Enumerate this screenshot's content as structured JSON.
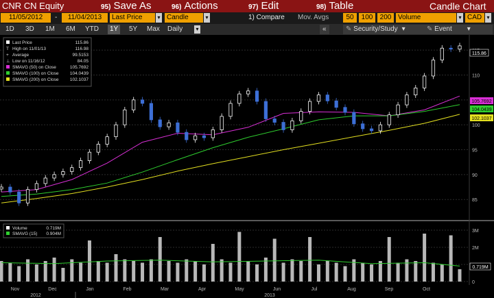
{
  "toolbar": {
    "ticker": "CNR CN Equity",
    "save_as": {
      "num": "95)",
      "label": "Save As"
    },
    "actions": {
      "num": "96)",
      "label": "Actions"
    },
    "edit": {
      "num": "97)",
      "label": "Edit"
    },
    "table": {
      "num": "98)",
      "label": "Table"
    },
    "title": "Candle Chart",
    "arrow": "▾"
  },
  "params": {
    "start_date": "11/05/2012",
    "dash": "-",
    "end_date": "11/04/2013",
    "field": "Last Price",
    "chart_type": "Candle",
    "compare": "1) Compare",
    "mov_avgs": "Mov. Avgs",
    "ma1": "50",
    "ma2": "100",
    "ma3": "200",
    "lower": "Volume",
    "currency": "CAD"
  },
  "periods": {
    "tabs": [
      "1D",
      "3D",
      "1M",
      "6M",
      "YTD",
      "1Y",
      "5Y",
      "Max"
    ],
    "active": "1Y",
    "frequency": "Daily",
    "collapse": "«",
    "security_study": "Security/Study",
    "event": "Event"
  },
  "colors": {
    "price": "#ffffff",
    "down": "#3d6fd6",
    "sma50": "#d92fd6",
    "sma100": "#2fcf2f",
    "sma200": "#e4e020",
    "volume": "#b8b8b8",
    "vol_sma": "#2fcf2f"
  },
  "legend": {
    "last_price": {
      "label": "Last Price",
      "value": "115.86"
    },
    "high": {
      "label": "High on 11/01/13",
      "value": "116.98"
    },
    "average": {
      "label": "Average",
      "value": "99.5153"
    },
    "low": {
      "label": "Low on 11/16/12",
      "value": "84.05"
    },
    "sma50": {
      "label": "SMAVG (50)  on Close",
      "value": "105.7692"
    },
    "sma100": {
      "label": "SMAVG (100)  on Close",
      "value": "104.0439"
    },
    "sma200": {
      "label": "SMAVG (200)  on Close",
      "value": "102.1037"
    }
  },
  "vol_legend": {
    "volume": {
      "label": "Volume",
      "value": "0.719M"
    },
    "sma15": {
      "label": "SMAVG (15)",
      "value": "0.904M"
    }
  },
  "tags": {
    "last": "115.86",
    "sma50": "105.7692",
    "sma100": "104.0439",
    "sma200": "102.1037",
    "volume": "0.719M"
  },
  "x_axis": {
    "months": [
      "Nov",
      "Dec",
      "Jan",
      "Feb",
      "Mar",
      "Apr",
      "May",
      "Jun",
      "Jul",
      "Aug",
      "Sep",
      "Oct"
    ],
    "years": [
      "2012",
      "2013"
    ]
  },
  "chart_data": [
    {
      "type": "candlestick",
      "title": "",
      "y_ticks": [
        85,
        90,
        95,
        100,
        105,
        110,
        115
      ],
      "ylim": [
        82,
        117.5
      ],
      "x": [
        "2012-11-05",
        "2012-11-12",
        "2012-11-16",
        "2012-11-26",
        "2012-12-03",
        "2012-12-10",
        "2012-12-17",
        "2012-12-24",
        "2012-12-31",
        "2013-01-07",
        "2013-01-14",
        "2013-01-21",
        "2013-01-28",
        "2013-02-04",
        "2013-02-11",
        "2013-02-18",
        "2013-02-25",
        "2013-03-04",
        "2013-03-11",
        "2013-03-18",
        "2013-03-25",
        "2013-04-01",
        "2013-04-08",
        "2013-04-15",
        "2013-04-22",
        "2013-04-29",
        "2013-05-06",
        "2013-05-13",
        "2013-05-20",
        "2013-05-27",
        "2013-06-03",
        "2013-06-10",
        "2013-06-17",
        "2013-06-24",
        "2013-07-01",
        "2013-07-08",
        "2013-07-15",
        "2013-07-22",
        "2013-07-29",
        "2013-08-05",
        "2013-08-12",
        "2013-08-19",
        "2013-08-26",
        "2013-09-02",
        "2013-09-09",
        "2013-09-16",
        "2013-09-23",
        "2013-09-30",
        "2013-10-07",
        "2013-10-14",
        "2013-10-21",
        "2013-10-28",
        "2013-11-04"
      ],
      "close": [
        87.5,
        86.5,
        84.3,
        87.0,
        88.2,
        89.3,
        90.0,
        90.6,
        91.4,
        92.8,
        94.5,
        96.1,
        97.6,
        100.0,
        103.0,
        105.0,
        104.3,
        101.0,
        99.6,
        100.4,
        98.5,
        97.0,
        97.8,
        97.4,
        99.0,
        101.7,
        104.3,
        106.2,
        106.8,
        104.7,
        101.2,
        100.5,
        99.0,
        100.8,
        102.7,
        104.7,
        106.0,
        104.8,
        103.5,
        102.5,
        100.2,
        99.2,
        98.8,
        100.0,
        102.0,
        104.0,
        106.0,
        107.4,
        109.8,
        113.0,
        115.4,
        115.2,
        115.86
      ],
      "series": [
        {
          "name": "SMAVG (50) on Close",
          "x": [
            0,
            4,
            8,
            12,
            16,
            20,
            24,
            28,
            32,
            36,
            40,
            44,
            48,
            52
          ],
          "values": [
            86.5,
            87.0,
            89.0,
            92.3,
            96.5,
            98.3,
            98.0,
            99.5,
            102.3,
            102.6,
            102.5,
            101.8,
            103.0,
            105.77
          ]
        },
        {
          "name": "SMAVG (100) on Close",
          "x": [
            0,
            4,
            8,
            12,
            16,
            20,
            24,
            28,
            32,
            36,
            40,
            44,
            48,
            52
          ],
          "values": [
            85.6,
            86.1,
            87.0,
            88.3,
            90.5,
            93.0,
            95.4,
            97.5,
            99.2,
            101.0,
            101.8,
            101.8,
            102.7,
            104.04
          ]
        },
        {
          "name": "SMAVG (200) on Close",
          "x": [
            0,
            4,
            8,
            12,
            16,
            20,
            24,
            28,
            32,
            36,
            40,
            44,
            48,
            52
          ],
          "values": [
            84.3,
            85.2,
            86.2,
            87.5,
            89.0,
            90.7,
            92.2,
            93.6,
            95.0,
            96.3,
            97.6,
            98.9,
            100.3,
            102.1
          ]
        }
      ]
    },
    {
      "type": "bar",
      "title": "",
      "y_ticks_label": [
        "0",
        "1M",
        "2M",
        "3M"
      ],
      "y_ticks": [
        0,
        1,
        2,
        3
      ],
      "ylim": [
        0,
        3.4
      ],
      "x": [
        "2012-11-05",
        "2012-11-12",
        "2012-11-19",
        "2012-11-26",
        "2012-12-03",
        "2012-12-10",
        "2012-12-17",
        "2012-12-24",
        "2012-12-31",
        "2013-01-07",
        "2013-01-14",
        "2013-01-21",
        "2013-01-28",
        "2013-02-04",
        "2013-02-11",
        "2013-02-18",
        "2013-02-25",
        "2013-03-04",
        "2013-03-11",
        "2013-03-18",
        "2013-03-25",
        "2013-04-01",
        "2013-04-08",
        "2013-04-15",
        "2013-04-22",
        "2013-04-29",
        "2013-05-06",
        "2013-05-13",
        "2013-05-20",
        "2013-05-27",
        "2013-06-03",
        "2013-06-10",
        "2013-06-17",
        "2013-06-24",
        "2013-07-01",
        "2013-07-08",
        "2013-07-15",
        "2013-07-22",
        "2013-07-29",
        "2013-08-05",
        "2013-08-12",
        "2013-08-19",
        "2013-08-26",
        "2013-09-02",
        "2013-09-09",
        "2013-09-16",
        "2013-09-23",
        "2013-09-30",
        "2013-10-07",
        "2013-10-14",
        "2013-10-21",
        "2013-10-28",
        "2013-11-04"
      ],
      "values": [
        1.2,
        1.1,
        0.9,
        1.3,
        1.0,
        1.2,
        1.4,
        0.8,
        1.3,
        1.1,
        2.4,
        1.2,
        1.1,
        1.6,
        1.3,
        1.2,
        1.1,
        1.3,
        2.6,
        1.2,
        1.1,
        1.3,
        1.2,
        1.0,
        2.2,
        1.3,
        1.1,
        2.9,
        1.2,
        1.0,
        1.4,
        2.5,
        1.1,
        1.3,
        1.2,
        2.6,
        1.0,
        1.2,
        1.1,
        0.9,
        1.3,
        1.1,
        1.0,
        1.2,
        2.6,
        1.1,
        1.3,
        1.2,
        2.8,
        1.1,
        1.0,
        2.7,
        0.72
      ],
      "series": [
        {
          "name": "SMAVG (15)",
          "x": [
            0,
            6,
            12,
            18,
            24,
            30,
            36,
            42,
            48,
            52
          ],
          "values": [
            1.1,
            1.05,
            1.2,
            1.25,
            1.15,
            1.2,
            1.25,
            1.05,
            1.1,
            0.904
          ]
        }
      ]
    }
  ]
}
